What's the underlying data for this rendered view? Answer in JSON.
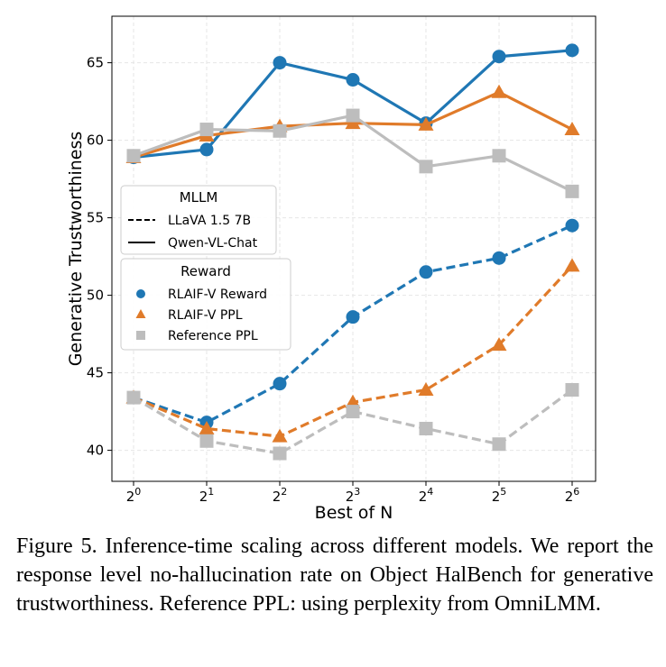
{
  "chart_data": {
    "type": "line",
    "x_ticks": [
      {
        "base": "2",
        "exp": "0"
      },
      {
        "base": "2",
        "exp": "1"
      },
      {
        "base": "2",
        "exp": "2"
      },
      {
        "base": "2",
        "exp": "3"
      },
      {
        "base": "2",
        "exp": "4"
      },
      {
        "base": "2",
        "exp": "5"
      },
      {
        "base": "2",
        "exp": "6"
      }
    ],
    "x": [
      0,
      1,
      2,
      3,
      4,
      5,
      6
    ],
    "xlabel": "Best of N",
    "ylabel": "Generative Trustworthiness",
    "ylim": [
      38,
      68
    ],
    "yticks": [
      40,
      45,
      50,
      55,
      60,
      65
    ],
    "grid": true,
    "series": [
      {
        "name": "Qwen-VL-Chat / RLAIF-V Reward",
        "model": "Qwen-VL-Chat",
        "reward": "RLAIF-V Reward",
        "linestyle": "solid",
        "marker": "circle",
        "color": "#1f77b4",
        "values": [
          58.9,
          59.4,
          65.0,
          63.9,
          61.1,
          65.4,
          65.8
        ]
      },
      {
        "name": "Qwen-VL-Chat / RLAIF-V PPL",
        "model": "Qwen-VL-Chat",
        "reward": "RLAIF-V PPL",
        "linestyle": "solid",
        "marker": "triangle",
        "color": "#e07b2a",
        "values": [
          58.9,
          60.3,
          60.9,
          61.1,
          61.0,
          63.1,
          60.7
        ]
      },
      {
        "name": "Qwen-VL-Chat / Reference PPL",
        "model": "Qwen-VL-Chat",
        "reward": "Reference PPL",
        "linestyle": "solid",
        "marker": "square",
        "color": "#bdbdbd",
        "values": [
          59.0,
          60.7,
          60.6,
          61.6,
          58.3,
          59.0,
          56.7
        ]
      },
      {
        "name": "LLaVA 1.5 7B / RLAIF-V Reward",
        "model": "LLaVA 1.5 7B",
        "reward": "RLAIF-V Reward",
        "linestyle": "dashed",
        "marker": "circle",
        "color": "#1f77b4",
        "values": [
          43.4,
          41.8,
          44.3,
          48.6,
          51.5,
          52.4,
          54.5
        ]
      },
      {
        "name": "LLaVA 1.5 7B / RLAIF-V PPL",
        "model": "LLaVA 1.5 7B",
        "reward": "RLAIF-V PPL",
        "linestyle": "dashed",
        "marker": "triangle",
        "color": "#e07b2a",
        "values": [
          43.4,
          41.4,
          40.9,
          43.1,
          43.9,
          46.8,
          51.9
        ]
      },
      {
        "name": "LLaVA 1.5 7B / Reference PPL",
        "model": "LLaVA 1.5 7B",
        "reward": "Reference PPL",
        "linestyle": "dashed",
        "marker": "square",
        "color": "#bdbdbd",
        "values": [
          43.4,
          40.6,
          39.8,
          42.5,
          41.4,
          40.4,
          43.9
        ]
      }
    ],
    "legend_mllm": {
      "title": "MLLM",
      "items": [
        {
          "label": "LLaVA 1.5 7B",
          "linestyle": "dashed"
        },
        {
          "label": "Qwen-VL-Chat",
          "linestyle": "solid"
        }
      ]
    },
    "legend_reward": {
      "title": "Reward",
      "items": [
        {
          "label": "RLAIF-V Reward",
          "marker": "circle",
          "color": "#1f77b4"
        },
        {
          "label": "RLAIF-V PPL",
          "marker": "triangle",
          "color": "#e07b2a"
        },
        {
          "label": "Reference PPL",
          "marker": "square",
          "color": "#bdbdbd"
        }
      ]
    }
  },
  "caption": "Figure 5. Inference-time scaling across different models. We report the response level no-hallucination rate on Object HalBench for generative trustworthiness. Reference PPL: using perplexity from OmniLMM."
}
